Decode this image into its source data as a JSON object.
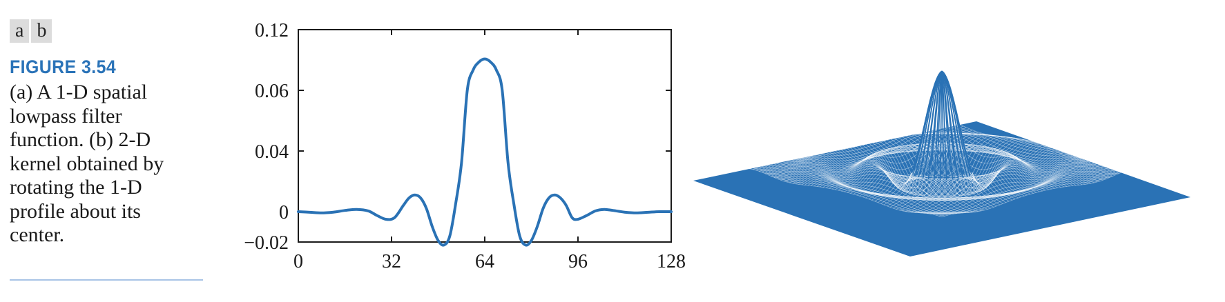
{
  "panel_labels": [
    "a",
    "b"
  ],
  "caption": {
    "figure_label": "FIGURE 3.54",
    "text": "(a) A 1-D spatial lowpass filter function. (b) 2-D kernel obtained by rotating the 1-D profile about its center."
  },
  "colors": {
    "curve": "#2a72b5",
    "title": "#2a73b8"
  },
  "chart_data": [
    {
      "type": "line",
      "x_ticks": [
        "0",
        "32",
        "64",
        "96",
        "128"
      ],
      "y_ticks": [
        "0.12",
        "0.06",
        "0.04",
        "0",
        "−0.02"
      ],
      "xlim": [
        0,
        128
      ],
      "series": [
        {
          "x": [
            0,
            4,
            8,
            12,
            16,
            20,
            24,
            27,
            30,
            33,
            36,
            38,
            40,
            42,
            44,
            46,
            48,
            50,
            52,
            54,
            56,
            58,
            60,
            62,
            64,
            66,
            68,
            70,
            72,
            74,
            76,
            78,
            80,
            82,
            84,
            86,
            88,
            90,
            92,
            94,
            96,
            99,
            102,
            105,
            108,
            112,
            116,
            120,
            124,
            128
          ],
          "y": [
            0.0,
            -0.0004,
            -0.0008,
            -0.0003,
            0.0008,
            0.0015,
            0.0005,
            -0.0025,
            -0.005,
            -0.004,
            0.004,
            0.009,
            0.011,
            0.009,
            0.002,
            -0.01,
            -0.019,
            -0.022,
            -0.016,
            0.005,
            0.032,
            0.06,
            0.08,
            0.088,
            0.091,
            0.088,
            0.08,
            0.06,
            0.032,
            0.005,
            -0.016,
            -0.022,
            -0.019,
            -0.01,
            0.002,
            0.009,
            0.011,
            0.009,
            0.004,
            -0.004,
            -0.005,
            -0.0025,
            0.0005,
            0.0015,
            0.0008,
            -0.0003,
            -0.0008,
            -0.0004,
            0.0,
            0.0
          ]
        }
      ]
    },
    {
      "type": "surface"
    }
  ]
}
